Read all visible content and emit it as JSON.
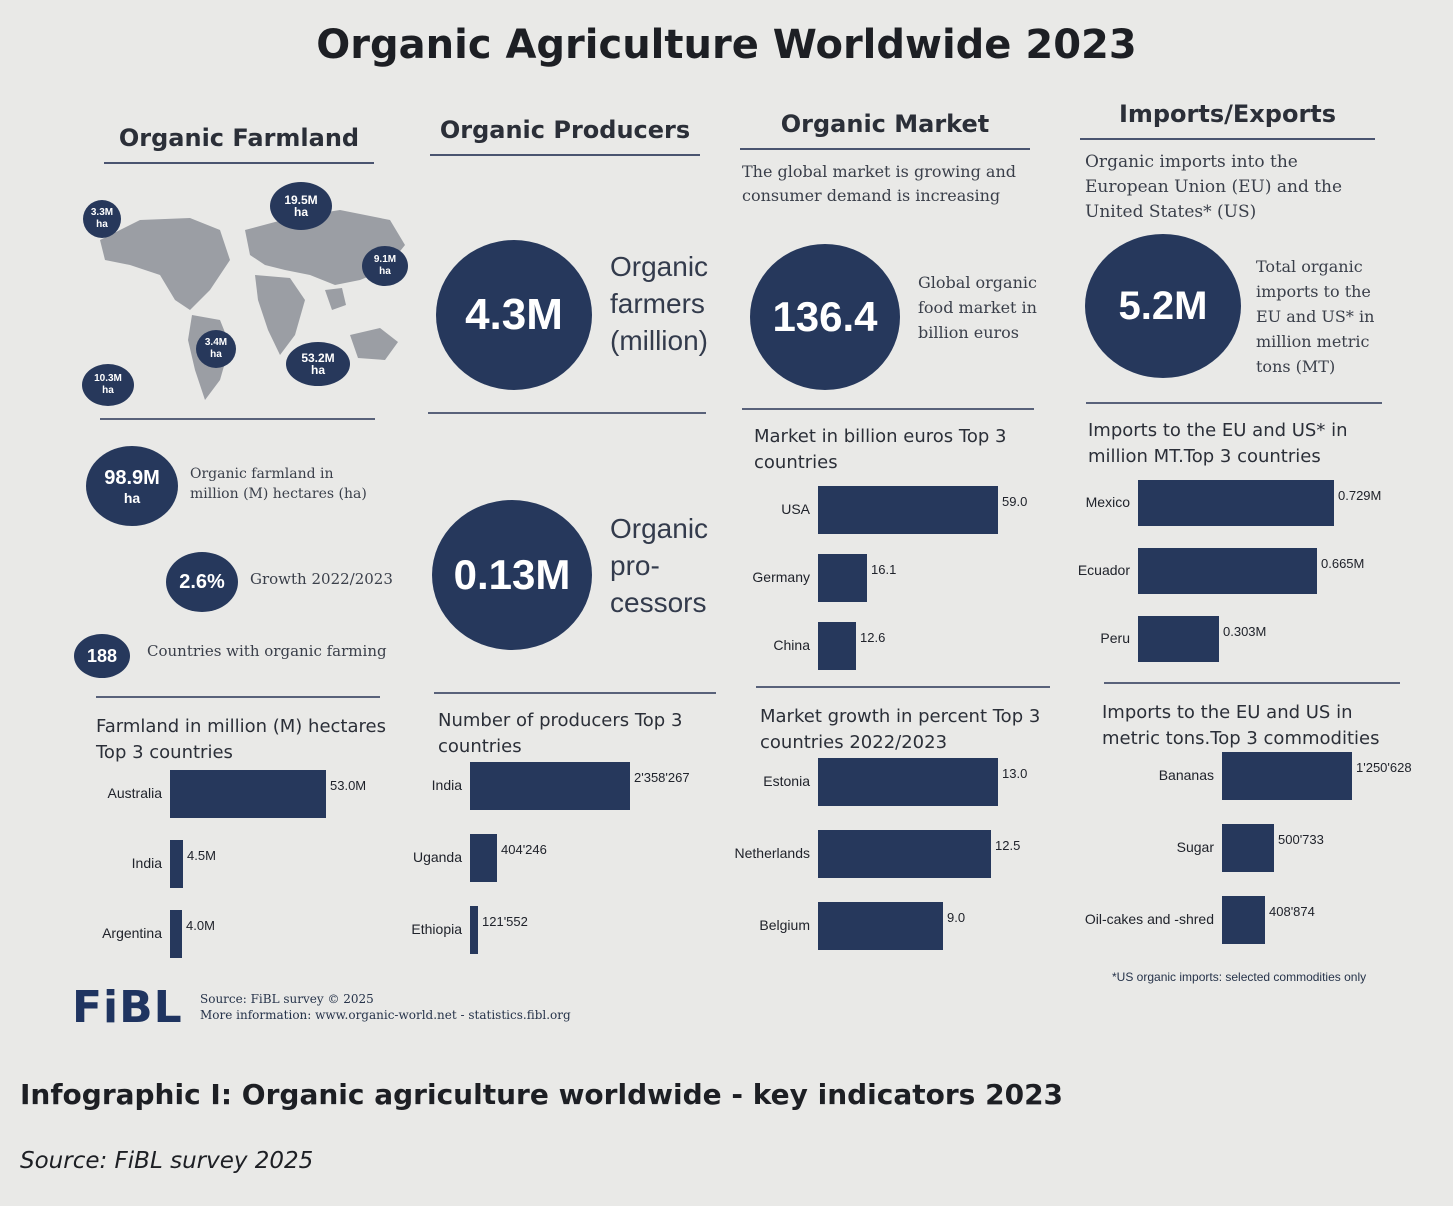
{
  "title": "Organic Agriculture Worldwide 2023",
  "sections": {
    "farmland": "Organic Farmland",
    "producers": "Organic Producers",
    "market": "Organic Market",
    "trade": "Imports/Exports"
  },
  "map_bubbles": [
    {
      "value": "3.3M",
      "unit": "ha"
    },
    {
      "value": "19.5M",
      "unit": "ha"
    },
    {
      "value": "9.1M",
      "unit": "ha"
    },
    {
      "value": "3.4M",
      "unit": "ha"
    },
    {
      "value": "53.2M",
      "unit": "ha"
    },
    {
      "value": "10.3M",
      "unit": "ha"
    }
  ],
  "farmland_stats": {
    "total_value": "98.9M",
    "total_unit": "ha",
    "total_label": "Organic farmland in million (M) hectares (ha)",
    "growth_value": "2.6%",
    "growth_label": "Growth 2022/2023",
    "countries_value": "188",
    "countries_label": "Countries with organic farming"
  },
  "producers_stats": {
    "farmers_value": "4.3M",
    "farmers_label": "Organic farmers (million)",
    "processors_value": "0.13M",
    "processors_label": "Organic pro- cessors"
  },
  "market_stats": {
    "intro": "The global market is growing and consumer demand is increasing",
    "value": "136.4",
    "label": "Global organic food market in billion euros"
  },
  "trade_stats": {
    "intro": "Organic imports into the European Union (EU) and the United States* (US)",
    "value": "5.2M",
    "label": "Total organic imports to the EU and US* in million metric tons (MT)"
  },
  "chart_data": [
    {
      "type": "bar",
      "title": "Market in billion euros Top 3 countries",
      "categories": [
        "USA",
        "Germany",
        "China"
      ],
      "values": [
        59.0,
        16.1,
        12.6
      ],
      "value_labels": [
        "59.0",
        "16.1",
        "12.6"
      ]
    },
    {
      "type": "bar",
      "title": "Imports to the EU and US* in million MT.Top 3 countries",
      "categories": [
        "Mexico",
        "Ecuador",
        "Peru"
      ],
      "values": [
        0.729,
        0.665,
        0.303
      ],
      "value_labels": [
        "0.729M",
        "0.665M",
        "0.303M"
      ]
    },
    {
      "type": "bar",
      "title": "Farmland in million (M) hectares Top 3 countries",
      "categories": [
        "Australia",
        "India",
        "Argentina"
      ],
      "values": [
        53.0,
        4.5,
        4.0
      ],
      "value_labels": [
        "53.0M",
        "4.5M",
        "4.0M"
      ]
    },
    {
      "type": "bar",
      "title": "Number of producers Top 3 countries",
      "categories": [
        "India",
        "Uganda",
        "Ethiopia"
      ],
      "values": [
        2358267,
        404246,
        121552
      ],
      "value_labels": [
        "2'358'267",
        "404'246",
        "121'552"
      ]
    },
    {
      "type": "bar",
      "title": "Market growth in percent Top 3 countries 2022/2023",
      "categories": [
        "Estonia",
        "Netherlands",
        "Belgium"
      ],
      "values": [
        13.0,
        12.5,
        9.0
      ],
      "value_labels": [
        "13.0",
        "12.5",
        "9.0"
      ]
    },
    {
      "type": "bar",
      "title": "Imports to the EU and US in metric tons.Top 3 commodities",
      "categories": [
        "Bananas",
        "Sugar",
        "Oil-cakes and -shred"
      ],
      "values": [
        1250628,
        500733,
        408874
      ],
      "value_labels": [
        "1'250'628",
        "500'733",
        "408'874"
      ]
    }
  ],
  "footnote": "*US organic imports: selected commodities only",
  "logo": "FiBL",
  "source_line1": "Source: FiBL survey © 2025",
  "source_line2": "More information: www.organic-world.net - statistics.fibl.org",
  "caption": "Infographic I: Organic agriculture worldwide - key indicators 2023",
  "caption_source": "Source: FiBL survey 2025",
  "colors": {
    "accent": "#26385c",
    "background": "#e9e9e7"
  }
}
